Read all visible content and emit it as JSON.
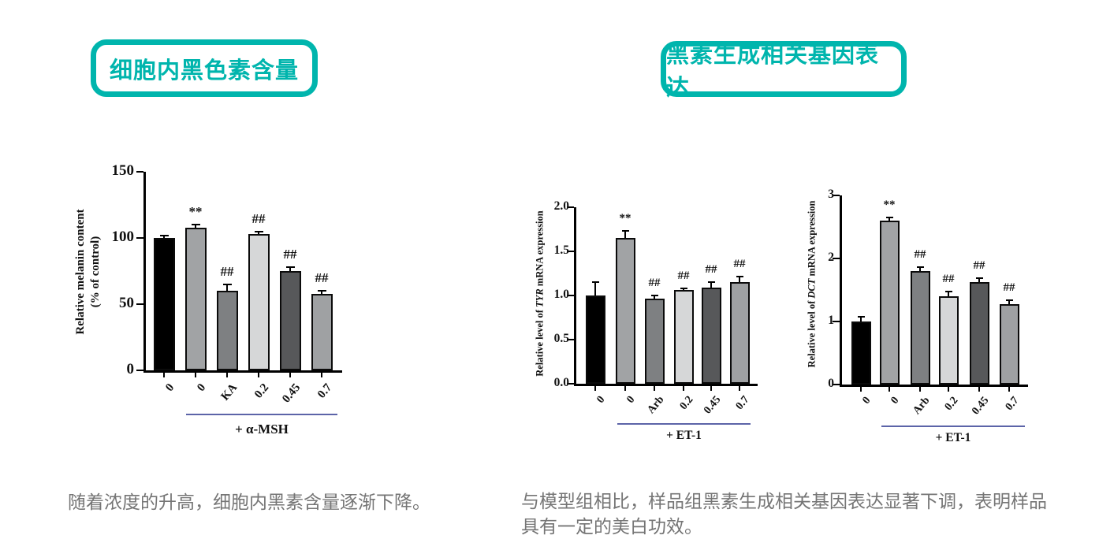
{
  "page": {
    "background": "#ffffff",
    "accent_color": "#00b5ad",
    "underline_color": "#5c64a8",
    "caption_color": "#757575",
    "axis_color": "#000000"
  },
  "badges": [
    {
      "label": "细胞内黑色素含量"
    },
    {
      "label": "黑素生成相关基因表达"
    }
  ],
  "captions": [
    {
      "lines": [
        "随着浓度的升高，细胞内黑素含量逐渐下降。"
      ]
    },
    {
      "lines": [
        "与模型组相比，样品组黑素生成相关基因表达显著下调，表明样品",
        "具有一定的美白功效。"
      ]
    }
  ],
  "chart_data": [
    {
      "type": "bar",
      "ylabel_lines": [
        "Relative melanin content",
        "(% of control)"
      ],
      "categories": [
        "0",
        "0",
        "KA",
        "0.2",
        "0.45",
        "0.7"
      ],
      "values": [
        100,
        108,
        60,
        103,
        75,
        58
      ],
      "errors": [
        2,
        2,
        5,
        1.5,
        3,
        2
      ],
      "annotations": [
        "",
        "**",
        "##",
        "##",
        "##",
        "##"
      ],
      "ylim": [
        0,
        150
      ],
      "ytick_values": [
        0,
        50,
        100,
        150
      ],
      "ytick_labels": [
        "0",
        "50",
        "100",
        "150"
      ],
      "group_label": "+ α-MSH",
      "group_start_index": 1,
      "bar_colors": [
        "#000000",
        "#a1a3a5",
        "#7e8082",
        "#d6d7d8",
        "#57585a",
        "#9fa1a3"
      ],
      "grid": false,
      "legend": null
    },
    {
      "type": "bar",
      "ylabel_parts": [
        {
          "text": "Relative level of ",
          "italic": false
        },
        {
          "text": "TYR",
          "italic": true
        },
        {
          "text": " mRNA expression",
          "italic": false
        }
      ],
      "categories": [
        "0",
        "0",
        "Arb",
        "0.2",
        "0.45",
        "0.7"
      ],
      "values": [
        1.0,
        1.65,
        0.96,
        1.06,
        1.09,
        1.15
      ],
      "errors": [
        0.15,
        0.08,
        0.04,
        0.02,
        0.06,
        0.06
      ],
      "annotations": [
        "",
        "**",
        "##",
        "##",
        "##",
        "##"
      ],
      "ylim": [
        0,
        2.0
      ],
      "ytick_values": [
        0,
        0.5,
        1.0,
        1.5,
        2.0
      ],
      "ytick_labels": [
        "0.0",
        "0.5",
        "1.0",
        "1.5",
        "2.0"
      ],
      "group_label": "+ ET-1",
      "group_start_index": 1,
      "bar_colors": [
        "#000000",
        "#a1a3a5",
        "#7e8082",
        "#d6d7d8",
        "#57585a",
        "#9fa1a3"
      ],
      "grid": false,
      "legend": null
    },
    {
      "type": "bar",
      "ylabel_parts": [
        {
          "text": "Relative level of ",
          "italic": false
        },
        {
          "text": "DCT",
          "italic": true
        },
        {
          "text": " mRNA expression",
          "italic": false
        }
      ],
      "categories": [
        "0",
        "0",
        "Arb",
        "0.2",
        "0.45",
        "0.7"
      ],
      "values": [
        1.0,
        2.6,
        1.8,
        1.4,
        1.62,
        1.28
      ],
      "errors": [
        0.07,
        0.05,
        0.06,
        0.07,
        0.07,
        0.06
      ],
      "annotations": [
        "",
        "**",
        "##",
        "##",
        "##",
        "##"
      ],
      "ylim": [
        0,
        3
      ],
      "ytick_values": [
        0,
        1,
        2,
        3
      ],
      "ytick_labels": [
        "0",
        "1",
        "2",
        "3"
      ],
      "group_label": "+ ET-1",
      "group_start_index": 1,
      "bar_colors": [
        "#000000",
        "#a1a3a5",
        "#7e8082",
        "#d6d7d8",
        "#57585a",
        "#9fa1a3"
      ],
      "grid": false,
      "legend": null
    }
  ]
}
